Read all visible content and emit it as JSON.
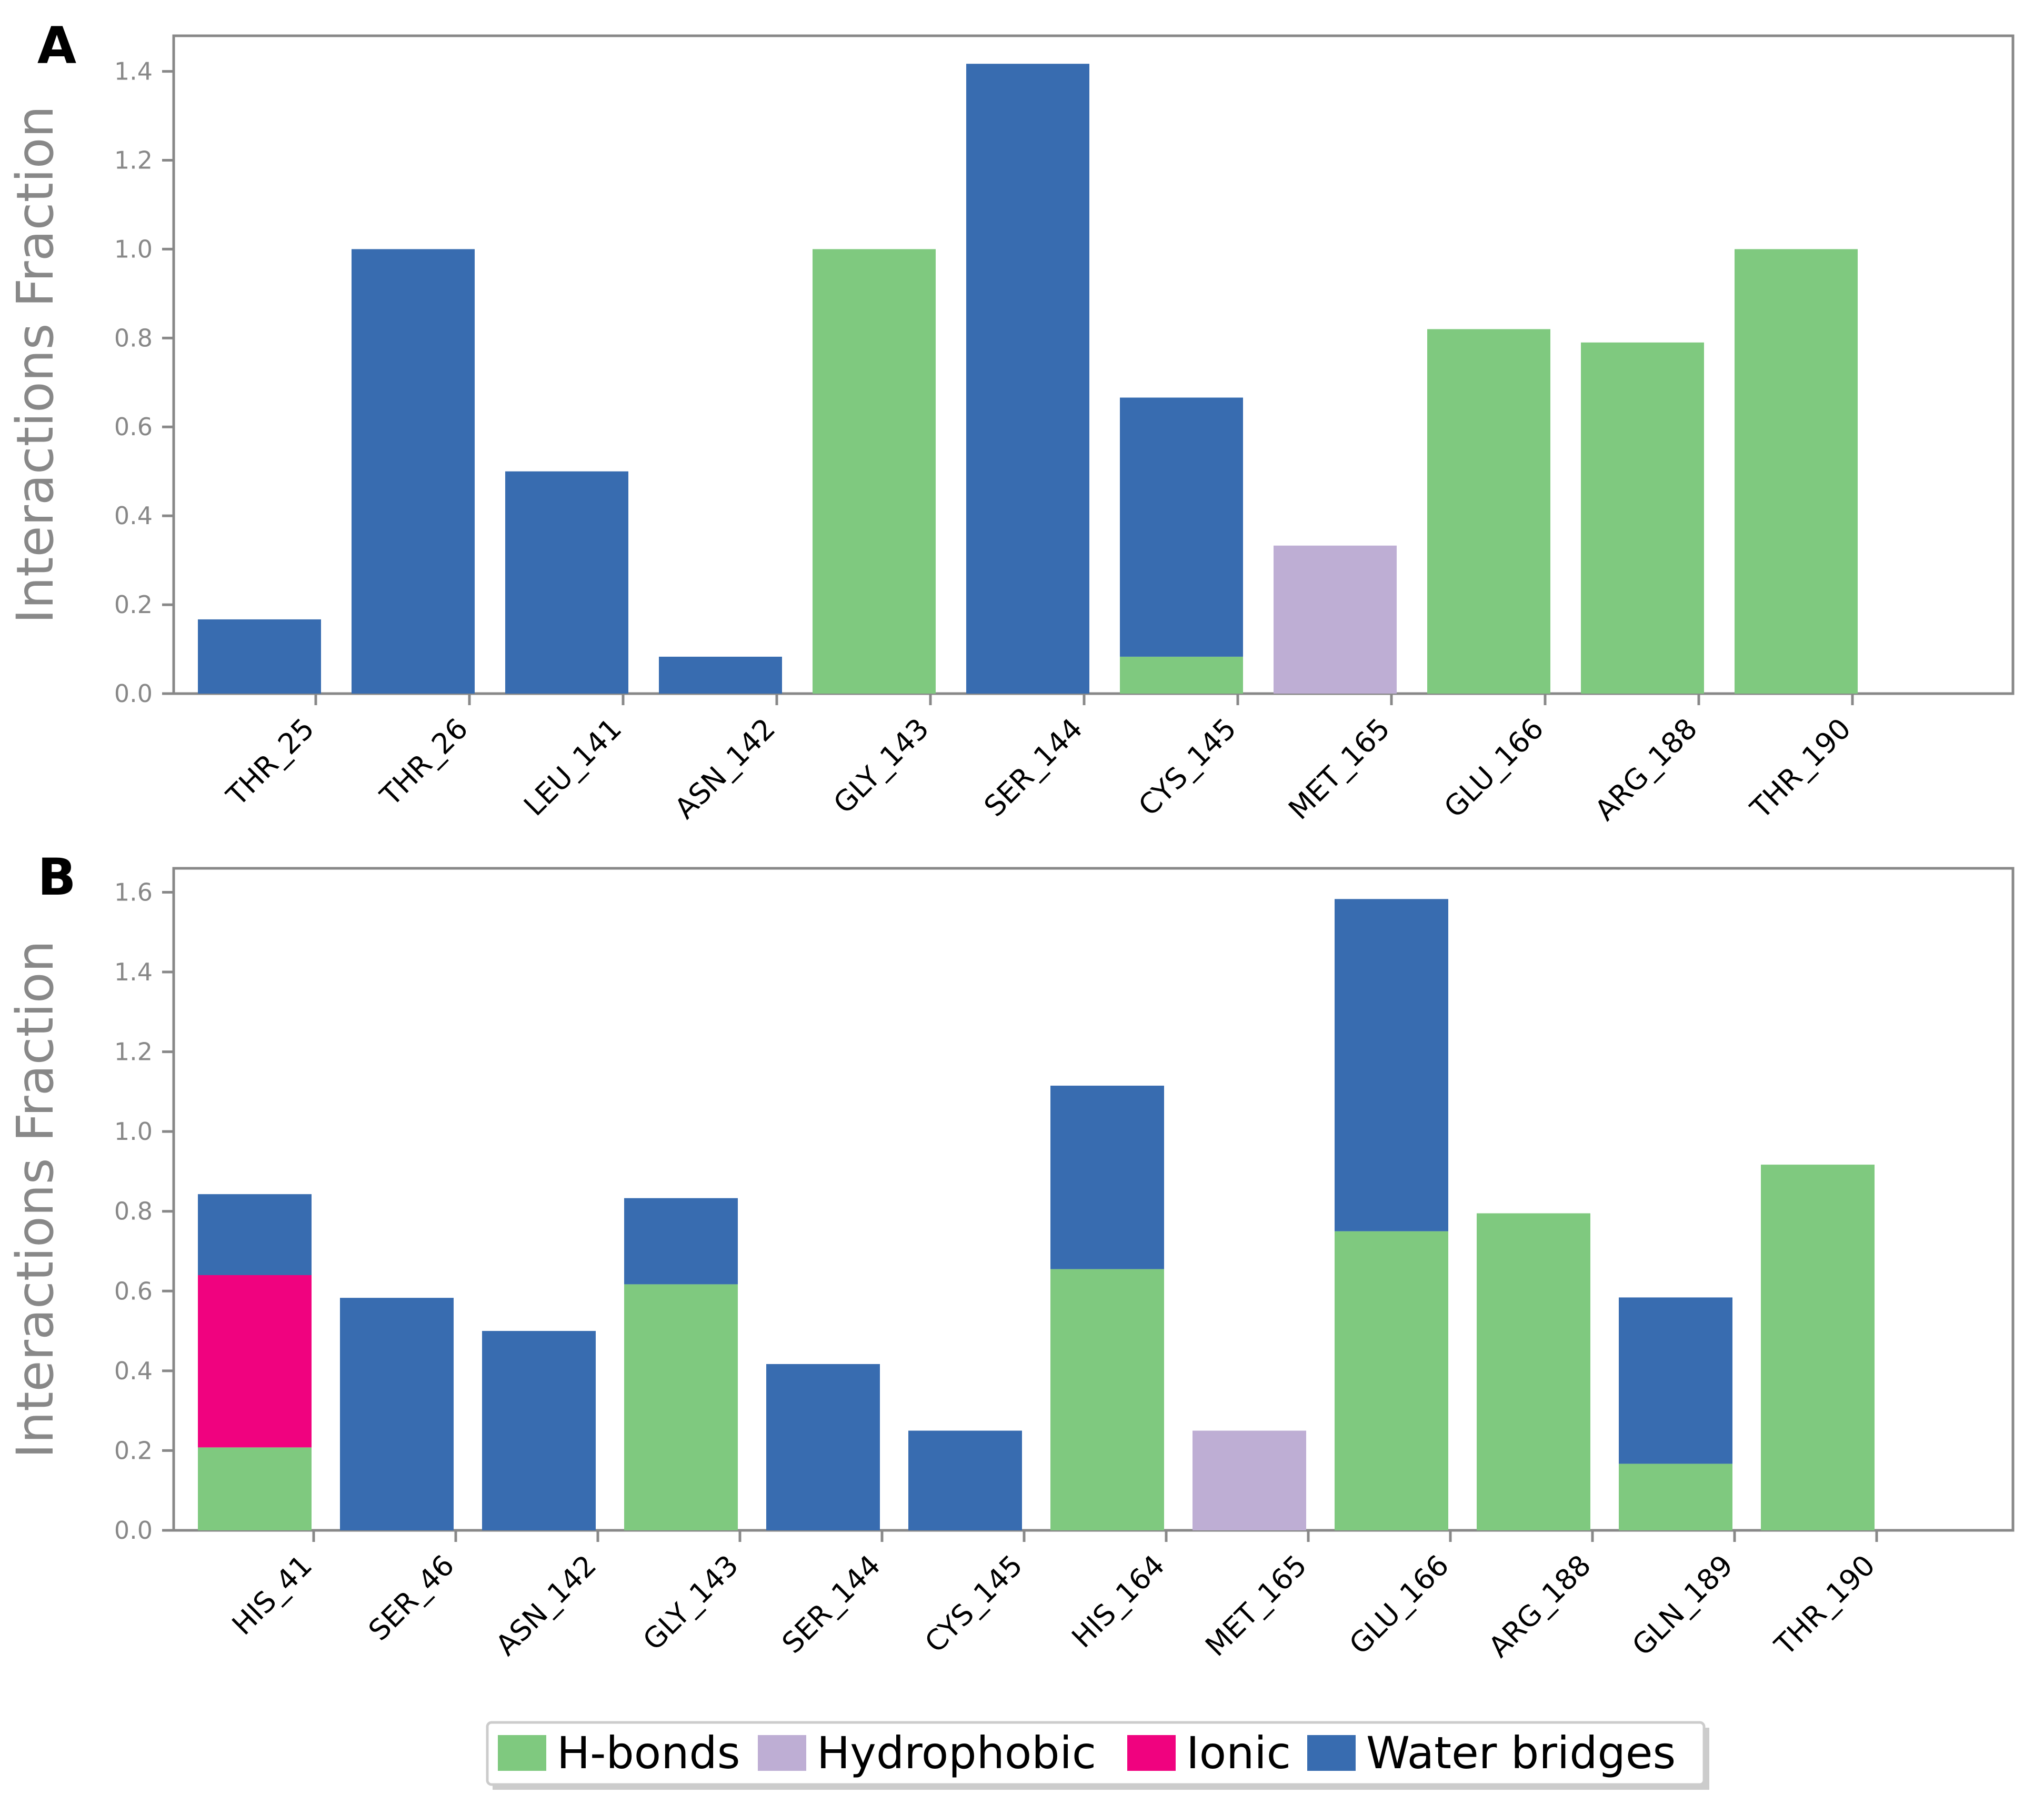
{
  "colors": {
    "hbonds": "#7fc97f",
    "hydrophobic": "#beaed4",
    "ionic": "#f0027f",
    "water": "#386cb0"
  },
  "legend": {
    "items": [
      {
        "key": "hbonds",
        "label": "H-bonds"
      },
      {
        "key": "hydrophobic",
        "label": "Hydrophobic"
      },
      {
        "key": "ionic",
        "label": "Ionic"
      },
      {
        "key": "water",
        "label": "Water bridges"
      }
    ]
  },
  "chart_data": [
    {
      "panel": "A",
      "type": "bar",
      "stacked": true,
      "ylabel": "Interactions Fraction",
      "ylim": [
        0,
        1.48
      ],
      "yticks": [
        "0.0",
        "0.2",
        "0.4",
        "0.6",
        "0.8",
        "1.0",
        "1.2",
        "1.4"
      ],
      "categories": [
        "THR_25",
        "THR_26",
        "LEU_141",
        "ASN_142",
        "GLY_143",
        "SER_144",
        "CYS_145",
        "MET_165",
        "GLU_166",
        "ARG_188",
        "THR_190"
      ],
      "series": [
        {
          "name": "H-bonds",
          "key": "hbonds",
          "values": [
            0,
            0,
            0,
            0,
            1.0,
            0,
            0.083,
            0,
            0.82,
            0.79,
            1.0
          ]
        },
        {
          "name": "Hydrophobic",
          "key": "hydrophobic",
          "values": [
            0,
            0,
            0,
            0,
            0,
            0,
            0,
            0.333,
            0,
            0,
            0
          ]
        },
        {
          "name": "Ionic",
          "key": "ionic",
          "values": [
            0,
            0,
            0,
            0,
            0,
            0,
            0,
            0,
            0,
            0,
            0
          ]
        },
        {
          "name": "Water bridges",
          "key": "water",
          "values": [
            0.167,
            1.0,
            0.5,
            0.083,
            0,
            1.417,
            0.583,
            0,
            0,
            0,
            0
          ]
        }
      ]
    },
    {
      "panel": "B",
      "type": "bar",
      "stacked": true,
      "ylabel": "Interactions Fraction",
      "ylim": [
        0,
        1.66
      ],
      "yticks": [
        "0.0",
        "0.2",
        "0.4",
        "0.6",
        "0.8",
        "1.0",
        "1.2",
        "1.4",
        "1.6"
      ],
      "categories": [
        "HIS_41",
        "SER_46",
        "ASN_142",
        "GLY_143",
        "SER_144",
        "CYS_145",
        "HIS_164",
        "MET_165",
        "GLU_166",
        "ARG_188",
        "GLN_189",
        "THR_190"
      ],
      "series": [
        {
          "name": "H-bonds",
          "key": "hbonds",
          "values": [
            0.208,
            0,
            0,
            0.617,
            0,
            0,
            0.655,
            0,
            0.75,
            0.795,
            0.167,
            0.917
          ]
        },
        {
          "name": "Hydrophobic",
          "key": "hydrophobic",
          "values": [
            0,
            0,
            0,
            0,
            0,
            0,
            0,
            0.25,
            0,
            0,
            0,
            0
          ]
        },
        {
          "name": "Ionic",
          "key": "ionic",
          "values": [
            0.432,
            0,
            0,
            0,
            0,
            0,
            0,
            0,
            0,
            0,
            0,
            0
          ]
        },
        {
          "name": "Water bridges",
          "key": "water",
          "values": [
            0.203,
            0.583,
            0.5,
            0.216,
            0.417,
            0.25,
            0.46,
            0,
            0.833,
            0,
            0.417,
            0
          ]
        }
      ]
    }
  ]
}
